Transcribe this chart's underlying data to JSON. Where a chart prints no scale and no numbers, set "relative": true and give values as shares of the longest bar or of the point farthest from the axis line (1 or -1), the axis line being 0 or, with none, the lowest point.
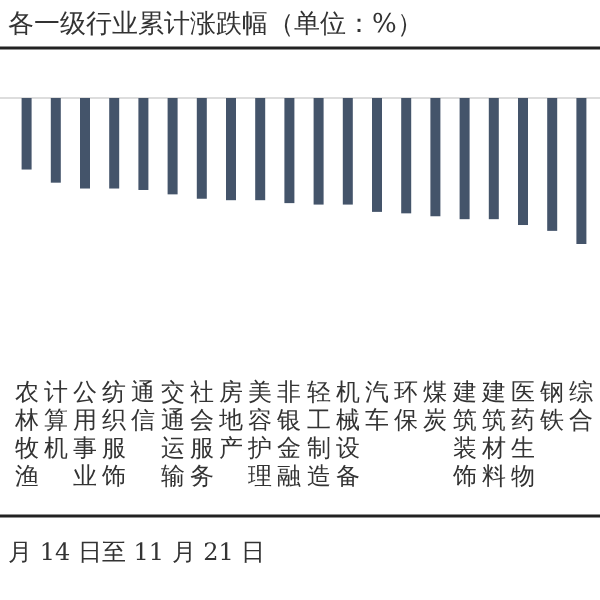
{
  "chart_data": {
    "type": "bar",
    "relative": true,
    "title": "各一级行业累计涨跌幅（单位：%）",
    "categories": [
      "农林牧渔",
      "计算机",
      "公用事业",
      "纺织服饰",
      "通信",
      "交通运输",
      "社会服务",
      "房地产",
      "美容护理",
      "非银金融",
      "轻工制造",
      "机械设备",
      "汽车",
      "环保",
      "煤炭",
      "建筑装饰",
      "建筑材料",
      "医药生物",
      "钢铁",
      "综合"
    ],
    "values": [
      -0.49,
      -0.58,
      -0.62,
      -0.62,
      -0.63,
      -0.66,
      -0.69,
      -0.7,
      -0.7,
      -0.72,
      -0.73,
      -0.73,
      -0.78,
      -0.79,
      -0.81,
      -0.83,
      -0.83,
      -0.87,
      -0.91,
      -1
    ],
    "color": "#44546a",
    "annotations": [
      "月 14 日至 11 月 21 日"
    ]
  }
}
